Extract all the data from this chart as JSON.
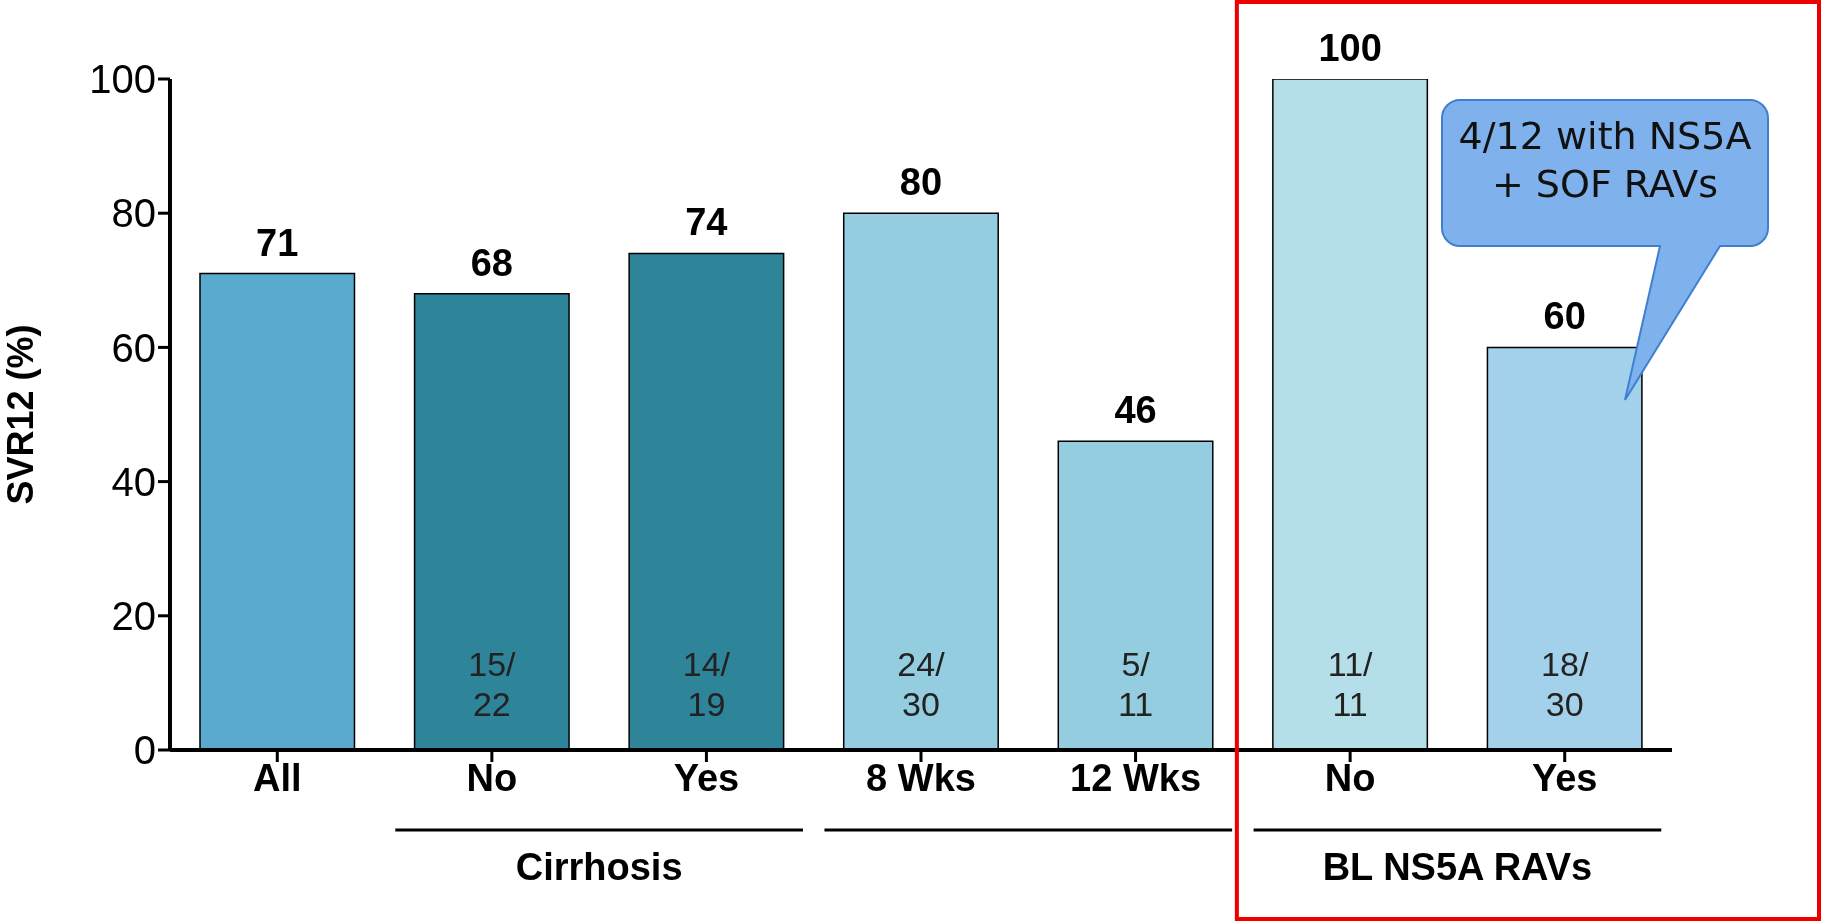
{
  "chart_data": {
    "type": "bar",
    "ylabel": "SVR12 (%)",
    "categories": [
      "All",
      "No",
      "Yes",
      "8 Wks",
      "12 Wks",
      "No",
      "Yes"
    ],
    "values": [
      71,
      68,
      74,
      80,
      46,
      100,
      60
    ],
    "colors": [
      "#5aaacf",
      "#2e8499",
      "#2e8499",
      "#94cde0",
      "#94cde0",
      "#b5dfe8",
      "#a3d0ea"
    ],
    "data_labels": true,
    "ylim": [
      0,
      100
    ],
    "yticks": [
      0,
      20,
      40,
      60,
      80,
      100
    ],
    "grid": false,
    "legend": false,
    "annotations": [
      "Cirrhosis",
      "BL NS5A RAVs",
      "4/12 with NS5A + SOF RAVs",
      "15/\n22",
      "14/\n19",
      "24/\n30",
      "5/\n11",
      "11/\n11",
      "18/\n30"
    ]
  }
}
